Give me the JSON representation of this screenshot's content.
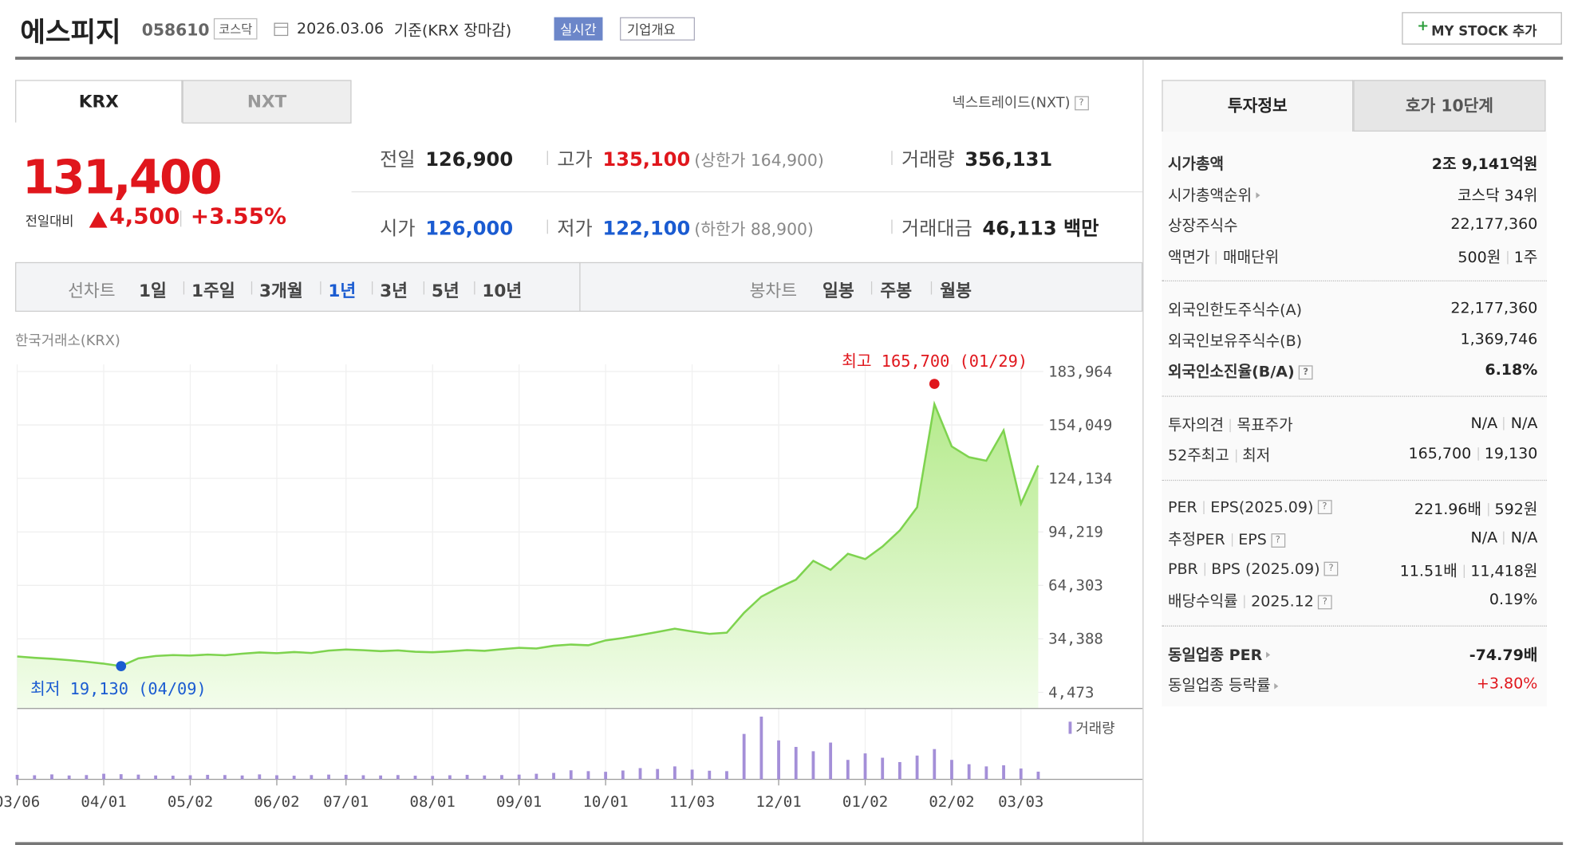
{
  "header": {
    "name": "에스피지",
    "code": "058610",
    "market": "코스닥",
    "date": "2026.03.06",
    "basis": "기준(KRX 장마감)",
    "realtime": "실시간",
    "company_info": "기업개요",
    "my_stock": "MY STOCK 추가"
  },
  "tabs": [
    "KRX",
    "NXT"
  ],
  "nxt_link": "넥스트레이드(NXT)",
  "quote": {
    "price": "131,400",
    "change_label": "전일대비",
    "change": "4,500",
    "change_rate": "+3.55%",
    "items": [
      {
        "label": "전일",
        "value": "126,900",
        "color": "#222"
      },
      {
        "label": "고가",
        "value": "135,100",
        "color": "#e0161c",
        "sub": "(상한가 164,900)"
      },
      {
        "label": "거래량",
        "value": "356,131",
        "color": "#222"
      },
      {
        "label": "시가",
        "value": "126,000",
        "color": "#1a5bd1"
      },
      {
        "label": "저가",
        "value": "122,100",
        "color": "#1a5bd1",
        "sub": "(하한가 88,900)"
      },
      {
        "label": "거래대금",
        "value": "46,113 백만",
        "color": "#222"
      }
    ]
  },
  "periods": {
    "line_label": "선차트",
    "line_items": [
      {
        "label": "1일"
      },
      {
        "label": "1주일"
      },
      {
        "label": "3개월"
      },
      {
        "label": "1년",
        "active": true
      },
      {
        "label": "3년"
      },
      {
        "label": "5년"
      },
      {
        "label": "10년"
      }
    ],
    "candle_label": "봉차트",
    "candle_items": [
      {
        "label": "일봉"
      },
      {
        "label": "주봉"
      },
      {
        "label": "월봉"
      }
    ]
  },
  "chart_data": {
    "type": "line",
    "source": "한국거래소(KRX)",
    "color": "#7ed34f",
    "x": [
      "03/06",
      null,
      null,
      null,
      null,
      "04/01",
      null,
      null,
      null,
      null,
      "05/02",
      null,
      null,
      null,
      null,
      "06/02",
      null,
      null,
      null,
      "07/01",
      null,
      null,
      null,
      null,
      "08/01",
      null,
      null,
      null,
      null,
      "09/01",
      null,
      null,
      null,
      null,
      "10/01",
      null,
      null,
      null,
      null,
      "11/03",
      null,
      null,
      null,
      null,
      "12/01",
      null,
      null,
      null,
      null,
      "01/02",
      null,
      null,
      null,
      null,
      "02/02",
      null,
      null,
      null,
      "03/03",
      null
    ],
    "values": [
      24500,
      23800,
      23200,
      22500,
      21600,
      20500,
      19130,
      23500,
      24800,
      25300,
      25000,
      25600,
      25200,
      26100,
      26800,
      26400,
      27000,
      26500,
      27800,
      28400,
      28000,
      27500,
      27900,
      27200,
      26900,
      27400,
      28100,
      27700,
      28600,
      29400,
      29000,
      30500,
      31200,
      30800,
      33500,
      34800,
      36500,
      38200,
      40100,
      38500,
      37200,
      37800,
      49000,
      58000,
      63000,
      67500,
      78000,
      73000,
      82000,
      79000,
      86000,
      95000,
      108000,
      165700,
      142000,
      136000,
      134000,
      151000,
      110000,
      131400
    ],
    "max_label": "최고 165,700 (01/29)",
    "min_label": "최저 19,130 (04/09)",
    "ylim": [
      4473,
      183964
    ],
    "yticks": [
      {
        "value": 4473,
        "label": "4,473"
      },
      {
        "value": 34388,
        "label": "34,388"
      },
      {
        "value": 64303,
        "label": "64,303"
      },
      {
        "value": 94219,
        "label": "94,219"
      },
      {
        "value": 124134,
        "label": "124,134"
      },
      {
        "value": 154049,
        "label": "154,049"
      },
      {
        "value": 183964,
        "label": "183,964"
      }
    ],
    "grid": true,
    "volume": {
      "name": "거래량",
      "color": "#a48fd8",
      "values": [
        210000,
        190000,
        230000,
        180000,
        200000,
        260000,
        240000,
        220000,
        180000,
        170000,
        190000,
        210000,
        200000,
        180000,
        230000,
        190000,
        170000,
        200000,
        220000,
        210000,
        190000,
        180000,
        200000,
        170000,
        160000,
        190000,
        210000,
        180000,
        200000,
        220000,
        260000,
        300000,
        420000,
        380000,
        350000,
        410000,
        520000,
        480000,
        600000,
        450000,
        400000,
        380000,
        2100000,
        2900000,
        1800000,
        1500000,
        1300000,
        1700000,
        900000,
        1200000,
        1000000,
        800000,
        1100000,
        1400000,
        900000,
        700000,
        600000,
        650000,
        500000,
        356131
      ]
    }
  },
  "sidebar": {
    "tabs": [
      "투자정보",
      "호가 10단계"
    ],
    "sections": [
      [
        {
          "labels": [
            "시가총액"
          ],
          "values": [
            "2조 9,141억원"
          ],
          "bold": true
        },
        {
          "labels": [
            "시가총액순위"
          ],
          "values": [
            "코스닥 34위"
          ],
          "arrow": true
        },
        {
          "labels": [
            "상장주식수"
          ],
          "values": [
            "22,177,360"
          ]
        },
        {
          "labels": [
            "액면가",
            "매매단위"
          ],
          "values": [
            "500원",
            "1주"
          ]
        }
      ],
      [
        {
          "labels": [
            "외국인한도주식수(A)"
          ],
          "values": [
            "22,177,360"
          ]
        },
        {
          "labels": [
            "외국인보유주식수(B)"
          ],
          "values": [
            "1,369,746"
          ]
        },
        {
          "labels": [
            "외국인소진율(B/A)"
          ],
          "values": [
            "6.18%"
          ],
          "bold": true,
          "help": true
        }
      ],
      [
        {
          "labels": [
            "투자의견",
            "목표주가"
          ],
          "values": [
            "N/A",
            "N/A"
          ]
        },
        {
          "labels": [
            "52주최고",
            "최저"
          ],
          "values": [
            "165,700",
            "19,130"
          ]
        }
      ],
      [
        {
          "labels": [
            "PER",
            "EPS(2025.09)"
          ],
          "values": [
            "221.96배",
            "592원"
          ],
          "help": true
        },
        {
          "labels": [
            "추정PER",
            "EPS"
          ],
          "values": [
            "N/A",
            "N/A"
          ],
          "help": true
        },
        {
          "labels": [
            "PBR",
            "BPS (2025.09)"
          ],
          "values": [
            "11.51배",
            "11,418원"
          ],
          "help": true
        },
        {
          "labels": [
            "배당수익률",
            "2025.12"
          ],
          "values": [
            "0.19%"
          ],
          "help": true
        }
      ],
      [
        {
          "labels": [
            "동일업종 PER"
          ],
          "values": [
            "-74.79배"
          ],
          "bold": true,
          "arrow": true
        },
        {
          "labels": [
            "동일업종 등락률"
          ],
          "values": [
            "+3.80%"
          ],
          "arrow": true,
          "color": "#e0161c"
        }
      ]
    ]
  }
}
